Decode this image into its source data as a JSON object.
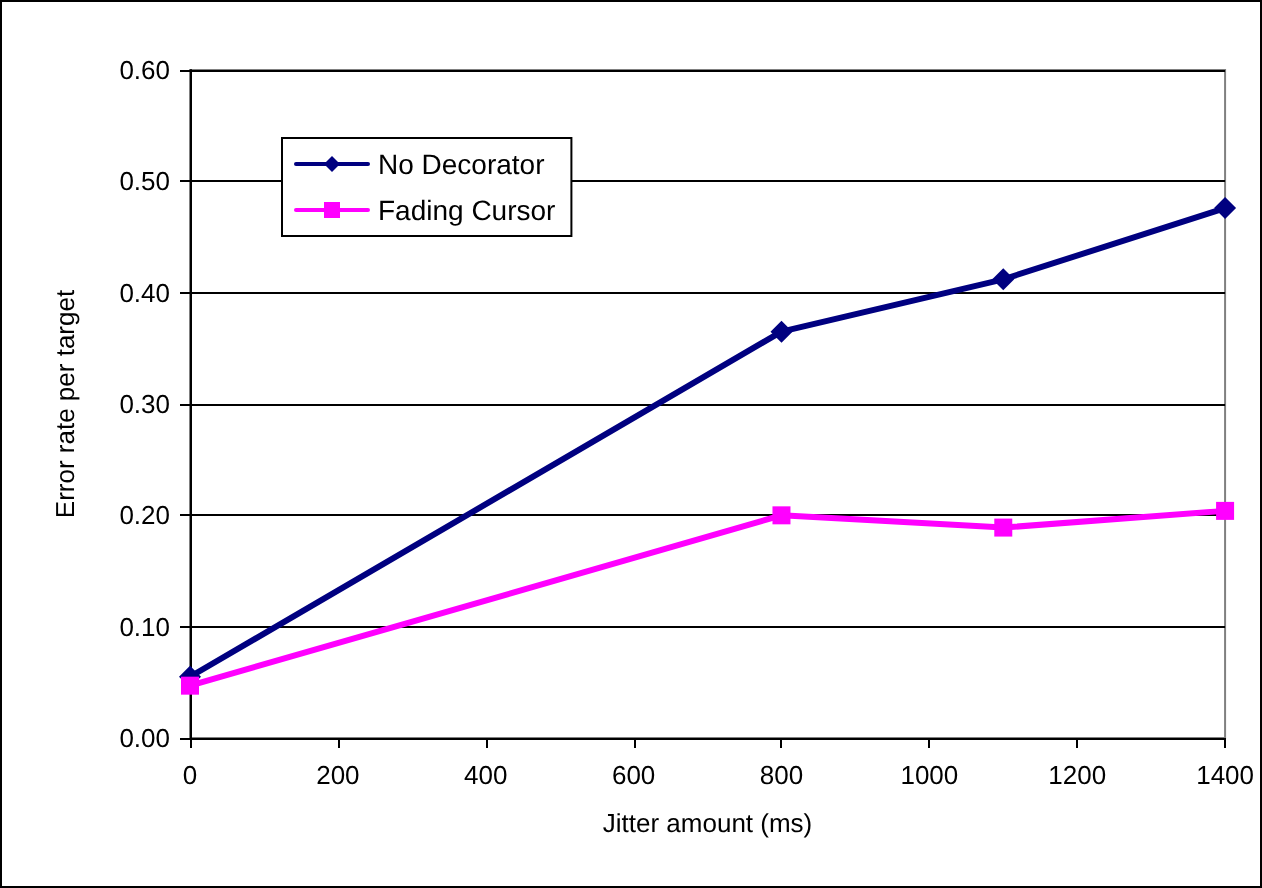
{
  "chart_data": {
    "type": "line",
    "xlabel": "Jitter amount (ms)",
    "ylabel": "Error rate per target",
    "x": [
      0,
      800,
      1100,
      1400
    ],
    "series": [
      {
        "name": "No Decorator",
        "color": "#000080",
        "marker": "diamond",
        "values": [
          0.055,
          0.365,
          0.412,
          0.476
        ]
      },
      {
        "name": "Fading Cursor",
        "color": "#ff00ff",
        "marker": "square",
        "values": [
          0.047,
          0.2,
          0.189,
          0.204
        ]
      }
    ],
    "xlim": [
      0,
      1400
    ],
    "xticks": [
      0,
      200,
      400,
      600,
      800,
      1000,
      1200,
      1400
    ],
    "ylim": [
      0,
      0.6
    ],
    "yticks": [
      {
        "value": 0,
        "label": "0.00"
      },
      {
        "value": 0.1,
        "label": "0.10"
      },
      {
        "value": 0.2,
        "label": "0.20"
      },
      {
        "value": 0.3,
        "label": "0.30"
      },
      {
        "value": 0.4,
        "label": "0.40"
      },
      {
        "value": 0.5,
        "label": "0.50"
      },
      {
        "value": 0.6,
        "label": "0.60"
      }
    ],
    "grid": "y",
    "legend": "top left",
    "line_style": "solid"
  }
}
